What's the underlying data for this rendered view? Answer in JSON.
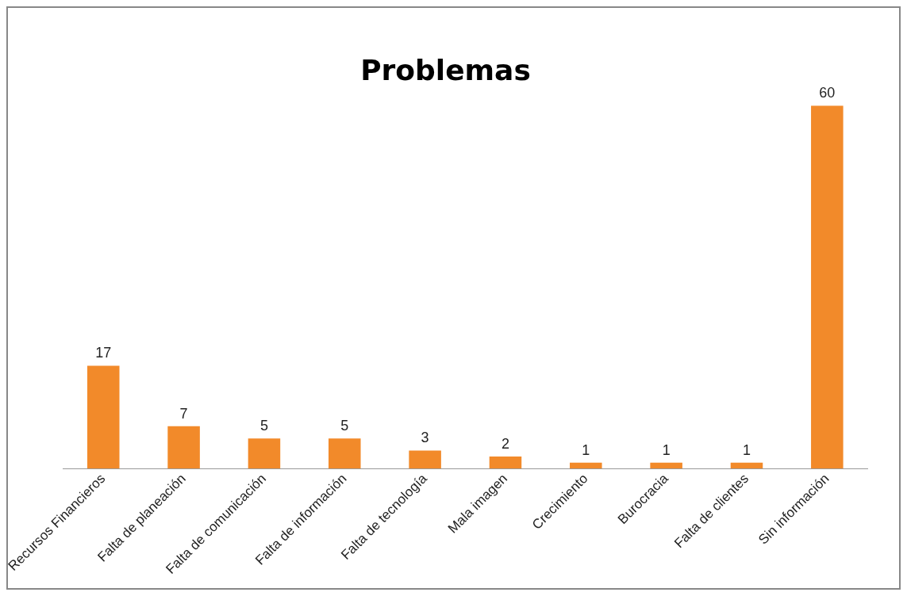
{
  "chart_data": {
    "type": "bar",
    "title": "Problemas",
    "categories": [
      "Recursos Financieros",
      "Falta de planeación",
      "Falta de comunicación",
      "Falta de información",
      "Falta de tecnología",
      "Mala imagen",
      "Crecimiento",
      "Burocracia",
      "Falta de clientes",
      "Sin información"
    ],
    "values": [
      17,
      7,
      5,
      5,
      3,
      2,
      1,
      1,
      1,
      60
    ],
    "color": "#f28a2a",
    "data_labels": true,
    "grid": false,
    "legend": false
  }
}
